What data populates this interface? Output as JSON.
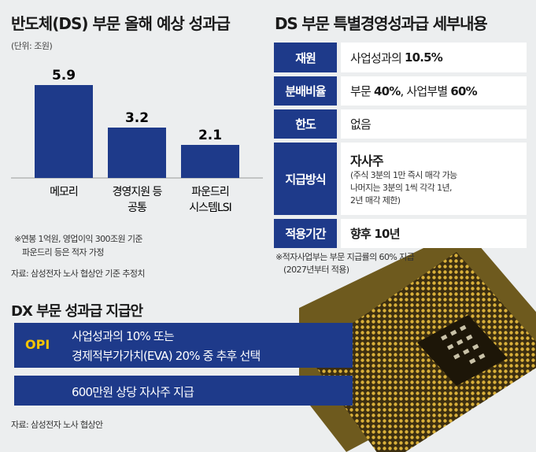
{
  "left_section": {
    "title": "반도체(DS) 부문 올해 예상 성과급",
    "unit": "(단위: 조원)",
    "note_line1": "※연봉 1억원, 영업이익 300조원 기준",
    "note_line2": "파운드리 등은 적자 가정",
    "source": "자료: 삼성전자 노사 협상안 기준 추정치"
  },
  "chart_data": {
    "type": "bar",
    "categories": [
      [
        "메모리"
      ],
      [
        "경영지원 등",
        "공통"
      ],
      [
        "파운드리",
        "시스템LSI"
      ]
    ],
    "values": [
      5.9,
      3.2,
      2.1
    ],
    "value_labels": [
      "5.9",
      "3.2",
      "2.1"
    ],
    "title": "반도체(DS) 부문 올해 예상 성과급",
    "unit": "(단위: 조원)",
    "ylim": [
      0,
      5.9
    ],
    "grid": false,
    "bar_color": "#1e3a8a"
  },
  "right_section": {
    "title": "DS 부문 특별경영성과급 세부내용",
    "rows": [
      {
        "label": "재원",
        "value_prefix": "사업성과의 ",
        "value_bold": "10.5%"
      },
      {
        "label": "분배비율",
        "value_prefix": "부문 ",
        "value_bold": "40%",
        "value_mid": ", 사업부별 ",
        "value_bold2": "60%"
      },
      {
        "label": "한도",
        "value_prefix": "없음"
      },
      {
        "label": "지급방식",
        "main": "자사주",
        "sub1": "(주식 3분의 1만 즉시 매각 가능",
        "sub2": "나머지는 3분의 1씩 각각 1년,",
        "sub3": "2년 매각 제한)"
      },
      {
        "label": "적용기간",
        "value_bold": "향후 10년"
      }
    ],
    "note_line1": "※적자사업부는 부문 지급률의 60% 지급",
    "note_line2": "(2027년부터 적용)"
  },
  "dx_section": {
    "title": "DX 부문 성과급 지급안",
    "opi_label": "OPI",
    "line1": "사업성과의 10% 또는",
    "line2": "경제적부가가치(EVA) 20% 중 추후 선택",
    "line3": "600만원 상당 자사주 지급",
    "source": "자료: 삼성전자 노사 협상안"
  },
  "colors": {
    "navy": "#1e3a8a",
    "opi_yellow": "#f5c400",
    "background": "#eceeef"
  },
  "image": {
    "icon": "cpu-chip-icon"
  }
}
